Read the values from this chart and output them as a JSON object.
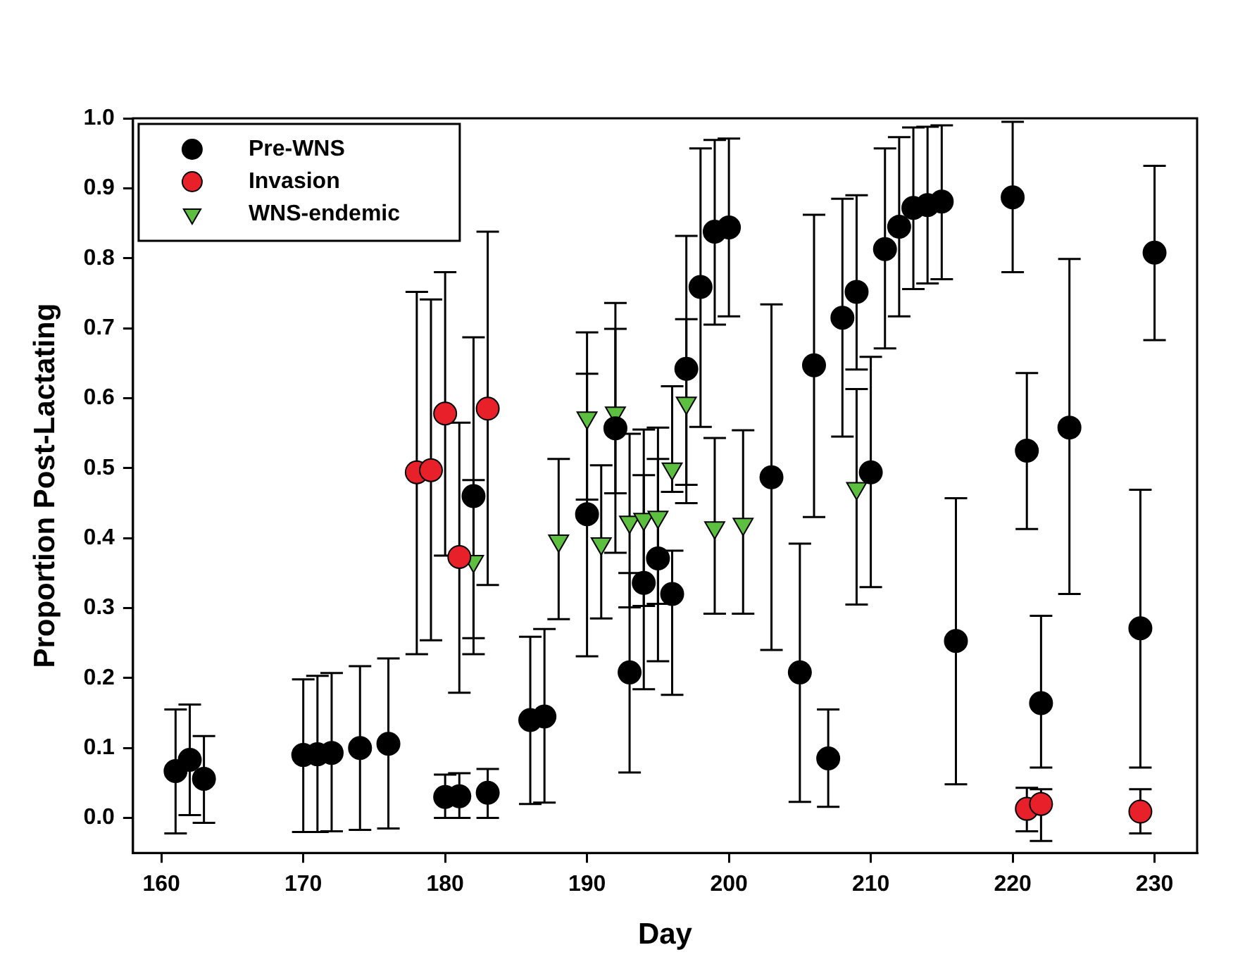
{
  "chart_data": {
    "type": "scatter",
    "xlabel": "Day",
    "ylabel": "Proportion Post-Lactating",
    "xlim": [
      158,
      233
    ],
    "ylim": [
      -0.05,
      1.0
    ],
    "xticks": [
      160,
      170,
      180,
      190,
      200,
      210,
      220,
      230
    ],
    "yticks": [
      {
        "value": 0,
        "label": "0.0"
      },
      {
        "value": 0.1,
        "label": "0.1"
      },
      {
        "value": 0.2,
        "label": "0.2"
      },
      {
        "value": 0.3,
        "label": "0.3"
      },
      {
        "value": 0.4,
        "label": "0.4"
      },
      {
        "value": 0.5,
        "label": "0.5"
      },
      {
        "value": 0.6,
        "label": "0.6"
      },
      {
        "value": 0.7,
        "label": "0.7"
      },
      {
        "value": 0.8,
        "label": "0.8"
      },
      {
        "value": 0.9,
        "label": "0.9"
      },
      {
        "value": 1.0,
        "label": "1.0"
      }
    ],
    "grid": false,
    "legend": "top left",
    "series": [
      {
        "name": "Pre-WNS",
        "color": "#000000",
        "marker": "circle",
        "x": [
          161,
          162,
          163,
          170,
          171,
          172,
          174,
          176,
          180,
          181,
          182,
          183,
          186,
          187,
          190,
          192,
          193,
          194,
          195,
          196,
          197,
          198,
          199,
          200,
          203,
          205,
          206,
          207,
          208,
          209,
          210,
          211,
          212,
          213,
          214,
          215,
          216,
          220,
          221,
          222,
          224,
          229,
          230
        ],
        "values": [
          0.067,
          0.083,
          0.056,
          0.09,
          0.091,
          0.093,
          0.1,
          0.106,
          0.03,
          0.031,
          0.46,
          0.036,
          0.14,
          0.145,
          0.434,
          0.557,
          0.208,
          0.336,
          0.371,
          0.32,
          0.642,
          0.759,
          0.838,
          0.844,
          0.487,
          0.208,
          0.647,
          0.085,
          0.715,
          0.752,
          0.494,
          0.813,
          0.845,
          0.872,
          0.876,
          0.881,
          0.253,
          0.887,
          0.525,
          0.164,
          0.558,
          0.271,
          0.808
        ],
        "errors": [
          [
            -0.022,
            0.155
          ],
          [
            0.004,
            0.162
          ],
          [
            -0.007,
            0.117
          ],
          [
            -0.02,
            0.198
          ],
          [
            -0.02,
            0.203
          ],
          [
            -0.019,
            0.207
          ],
          [
            -0.017,
            0.217
          ],
          [
            -0.015,
            0.228
          ],
          [
            0.0,
            0.062
          ],
          [
            0.0,
            0.064
          ],
          [
            0.257,
            0.483
          ],
          [
            0.0,
            0.07
          ],
          [
            0.02,
            0.259
          ],
          [
            0.022,
            0.27
          ],
          [
            0.231,
            0.635
          ],
          [
            0.379,
            0.699
          ],
          [
            0.065,
            0.35
          ],
          [
            0.184,
            0.49
          ],
          [
            0.224,
            0.513
          ],
          [
            0.176,
            0.382
          ],
          [
            0.45,
            0.832
          ],
          [
            0.559,
            0.957
          ],
          [
            0.705,
            0.969
          ],
          [
            0.717,
            0.971
          ],
          [
            0.24,
            0.734
          ],
          [
            0.023,
            0.392
          ],
          [
            0.43,
            0.862
          ],
          [
            0.016,
            0.155
          ],
          [
            0.545,
            0.885
          ],
          [
            0.641,
            0.89
          ],
          [
            0.33,
            0.659
          ],
          [
            0.671,
            0.957
          ],
          [
            0.717,
            0.973
          ],
          [
            0.756,
            0.987
          ],
          [
            0.764,
            0.988
          ],
          [
            0.77,
            0.99
          ],
          [
            0.048,
            0.457
          ],
          [
            0.78,
            0.995
          ],
          [
            0.413,
            0.636
          ],
          [
            0.072,
            0.289
          ],
          [
            0.32,
            0.799
          ],
          [
            0.072,
            0.469
          ],
          [
            0.683,
            0.932
          ]
        ]
      },
      {
        "name": "Invasion",
        "color": "#e8202a",
        "marker": "circle",
        "x": [
          178,
          179,
          180,
          181,
          183,
          221,
          222,
          229
        ],
        "values": [
          0.494,
          0.497,
          0.578,
          0.373,
          0.585,
          0.013,
          0.02,
          0.009
        ],
        "errors": [
          [
            0.234,
            0.752
          ],
          [
            0.254,
            0.741
          ],
          [
            0.375,
            0.78
          ],
          [
            0.179,
            0.565
          ],
          [
            0.333,
            0.838
          ],
          [
            -0.019,
            0.043
          ],
          [
            -0.033,
            0.041
          ],
          [
            -0.022,
            0.041
          ]
        ]
      },
      {
        "name": "WNS-endemic",
        "color": "#5cbf3f",
        "marker": "triangle",
        "x": [
          182,
          188,
          190,
          191,
          192,
          193,
          194,
          195,
          196,
          197,
          199,
          201,
          209
        ],
        "values": [
          0.367,
          0.396,
          0.572,
          0.392,
          0.579,
          0.423,
          0.427,
          0.43,
          0.499,
          0.593,
          0.415,
          0.42,
          0.471
        ],
        "errors": [
          [
            0.234,
            0.687
          ],
          [
            0.284,
            0.513
          ],
          [
            0.455,
            0.694
          ],
          [
            0.285,
            0.504
          ],
          [
            0.464,
            0.736
          ],
          [
            0.301,
            0.549
          ],
          [
            0.303,
            0.555
          ],
          [
            0.306,
            0.558
          ],
          [
            0.466,
            0.617
          ],
          [
            0.476,
            0.713
          ],
          [
            0.292,
            0.543
          ],
          [
            0.292,
            0.554
          ],
          [
            0.305,
            0.613
          ]
        ]
      }
    ]
  }
}
